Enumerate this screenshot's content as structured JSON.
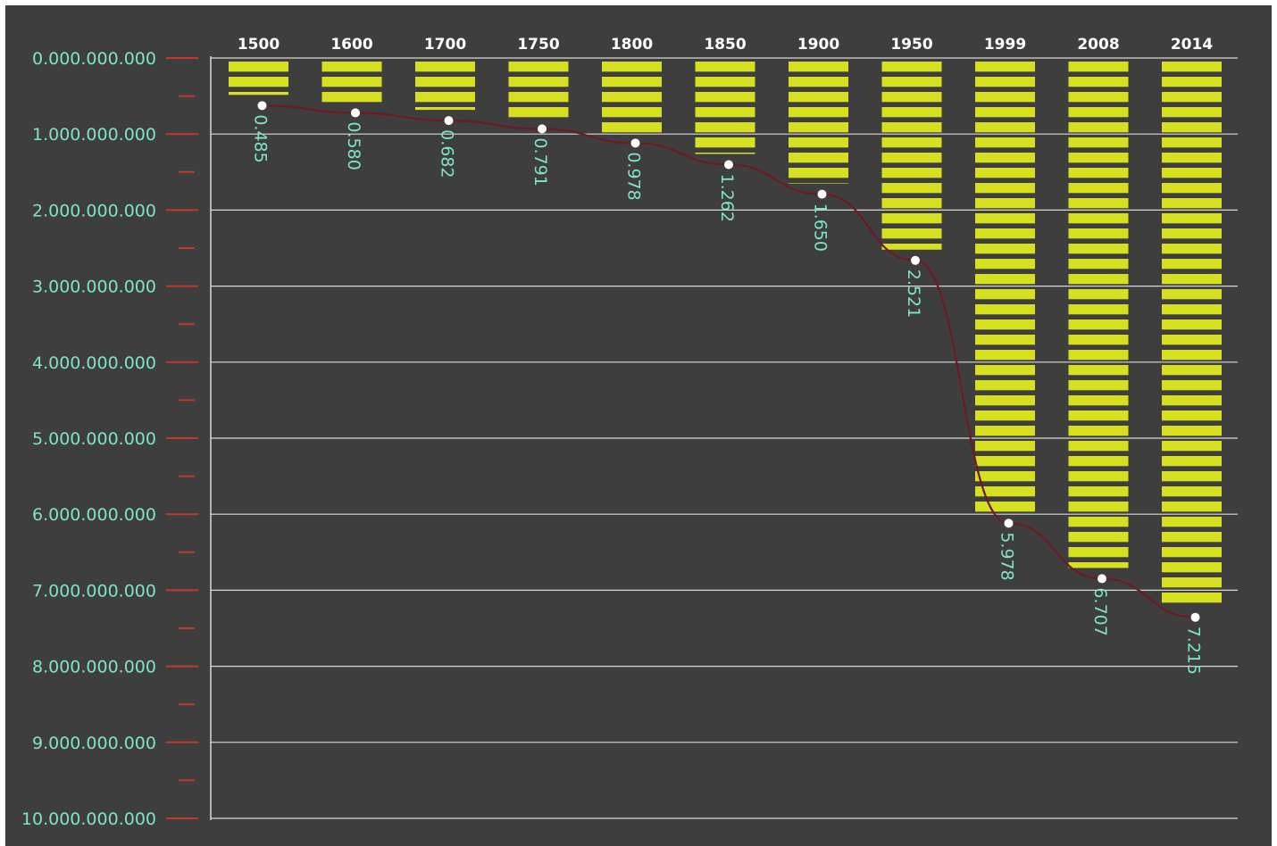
{
  "chart_data": {
    "type": "bar",
    "title": "",
    "xlabel": "",
    "ylabel": "",
    "ylim": [
      0,
      10000000000
    ],
    "y_axis_inverted": true,
    "grid": true,
    "categories": [
      "1500",
      "1600",
      "1700",
      "1750",
      "1800",
      "1850",
      "1900",
      "1950",
      "1999",
      "2008",
      "2014"
    ],
    "values": [
      485000000,
      580000000,
      682000000,
      791000000,
      978000000,
      1262000000,
      1650000000,
      2521000000,
      5978000000,
      6707000000,
      7215000000
    ],
    "value_labels": [
      "0.485",
      "0.580",
      "0.682",
      "0.791",
      "0.978",
      "1.262",
      "1.650",
      "2.521",
      "5.978",
      "6.707",
      "7.215"
    ],
    "y_tick_labels": [
      "0.000.000.000",
      "1.000.000.000",
      "2.000.000.000",
      "3.000.000.000",
      "4.000.000.000",
      "5.000.000.000",
      "6.000.000.000",
      "7.000.000.000",
      "8.000.000.000",
      "9.000.000.000",
      "10.000.000.000"
    ],
    "colors": {
      "background": "#3e3e3e",
      "bar": "#d6e020",
      "trend_line": "#6e1a22",
      "grid": "#d8d8d8",
      "tick_marks": "#c0392b",
      "labels": "#7fe3c9",
      "marker": "#ffffff"
    }
  }
}
